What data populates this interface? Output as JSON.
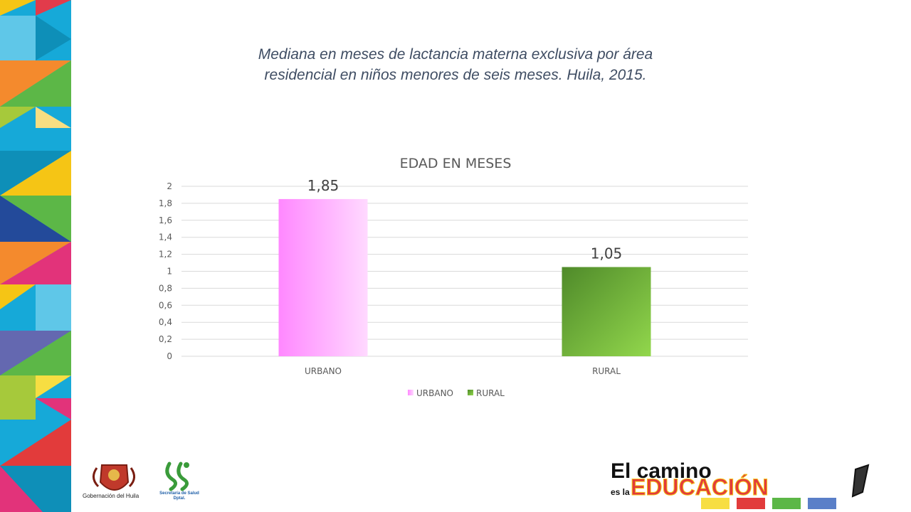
{
  "slide": {
    "title": "Mediana en meses de lactancia materna exclusiva por área residencial en niños menores de seis meses. Huila, 2015."
  },
  "footer": {
    "gobernacion_label": "Gobernación del Huila",
    "salud_label_line1": "Secretaría de Salud",
    "salud_label_line2": "Dptal.",
    "brand_line1": "El camino",
    "brand_line2": "es la",
    "brand_line3": "EDUCACIÓN"
  },
  "chart_data": {
    "type": "bar",
    "title": "EDAD EN MESES",
    "categories": [
      "URBANO",
      "RURAL"
    ],
    "series": [
      {
        "name": "URBANO",
        "values": [
          1.85,
          null
        ],
        "color": "#ff88ff"
      },
      {
        "name": "RURAL",
        "values": [
          null,
          1.05
        ],
        "color": "#5a9a2c"
      }
    ],
    "data_labels": [
      "1,85",
      "1,05"
    ],
    "ylim": [
      0,
      2
    ],
    "yticks": [
      0,
      0.2,
      0.4,
      0.6,
      0.8,
      1,
      1.2,
      1.4,
      1.6,
      1.8,
      2
    ],
    "ytick_labels": [
      "0",
      "0,2",
      "0,4",
      "0,6",
      "0,8",
      "1",
      "1,2",
      "1,4",
      "1,6",
      "1,8",
      "2"
    ],
    "xlabel": "",
    "ylabel": "",
    "grid": true,
    "legend_position": "bottom"
  }
}
